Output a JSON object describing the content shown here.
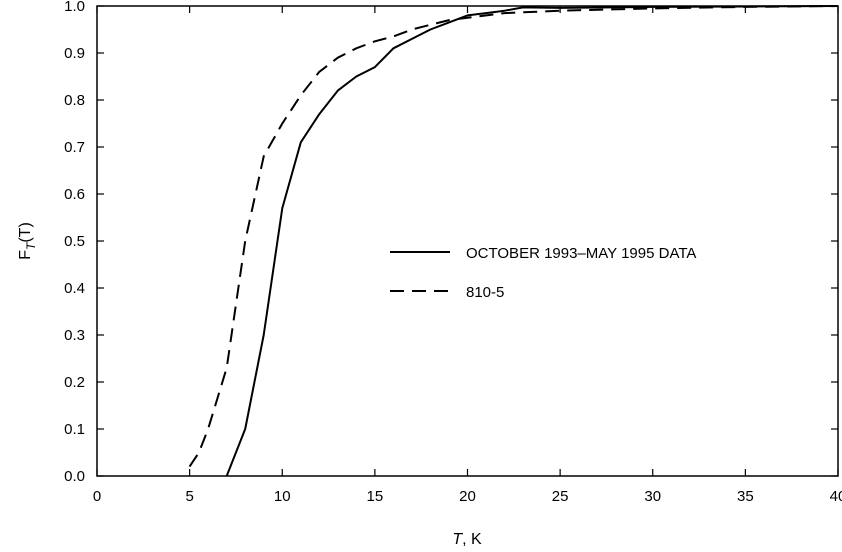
{
  "chart_data": {
    "type": "line",
    "title": "",
    "xlabel": {
      "var": "T",
      "unit": ", K"
    },
    "ylabel": {
      "base": "F",
      "sub": "T",
      "arg": "(T)"
    },
    "xlim": [
      0,
      40
    ],
    "ylim": [
      0.0,
      1.0
    ],
    "x_ticks": [
      0,
      5,
      10,
      15,
      20,
      25,
      30,
      35,
      40
    ],
    "y_ticks": [
      0.0,
      0.1,
      0.2,
      0.3,
      0.4,
      0.5,
      0.6,
      0.7,
      0.8,
      0.9,
      1.0
    ],
    "x_tick_labels": [
      "0",
      "5",
      "10",
      "15",
      "20",
      "25",
      "30",
      "35",
      "40"
    ],
    "y_tick_labels": [
      "0.0",
      "0.1",
      "0.2",
      "0.3",
      "0.4",
      "0.5",
      "0.6",
      "0.7",
      "0.8",
      "0.9",
      "1.0"
    ],
    "grid": false,
    "legend_position": "center-right",
    "series": [
      {
        "name": "OCTOBER 1993–MAY 1995 DATA",
        "style": "solid",
        "color": "#000000",
        "points": [
          [
            7,
            0.0
          ],
          [
            8,
            0.1
          ],
          [
            9,
            0.3
          ],
          [
            10,
            0.57
          ],
          [
            11,
            0.71
          ],
          [
            12,
            0.77
          ],
          [
            13,
            0.82
          ],
          [
            14,
            0.85
          ],
          [
            15,
            0.87
          ],
          [
            16,
            0.91
          ],
          [
            17,
            0.93
          ],
          [
            18,
            0.95
          ],
          [
            19,
            0.965
          ],
          [
            20,
            0.98
          ],
          [
            21,
            0.985
          ],
          [
            22,
            0.99
          ],
          [
            23,
            0.997
          ],
          [
            25,
            0.996
          ],
          [
            30,
            0.998
          ],
          [
            35,
            0.999
          ],
          [
            40,
            1.0
          ]
        ]
      },
      {
        "name": "810-5",
        "style": "dashed",
        "color": "#000000",
        "points": [
          [
            5,
            0.02
          ],
          [
            5.5,
            0.05
          ],
          [
            6,
            0.1
          ],
          [
            7,
            0.23
          ],
          [
            8,
            0.5
          ],
          [
            9,
            0.68
          ],
          [
            10,
            0.75
          ],
          [
            11,
            0.81
          ],
          [
            12,
            0.86
          ],
          [
            13,
            0.89
          ],
          [
            14,
            0.91
          ],
          [
            15,
            0.925
          ],
          [
            16,
            0.935
          ],
          [
            17,
            0.95
          ],
          [
            18,
            0.96
          ],
          [
            19,
            0.97
          ],
          [
            20,
            0.975
          ],
          [
            22,
            0.985
          ],
          [
            25,
            0.99
          ],
          [
            30,
            0.995
          ],
          [
            35,
            0.998
          ],
          [
            40,
            1.0
          ]
        ]
      }
    ]
  }
}
